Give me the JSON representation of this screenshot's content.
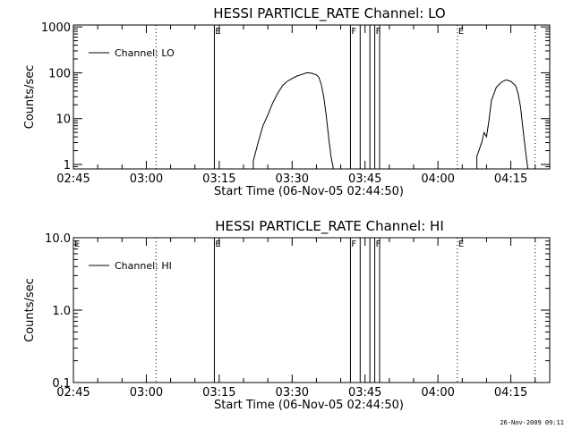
{
  "chart_data": [
    {
      "type": "line",
      "title": "HESSI PARTICLE_RATE Channel: LO",
      "xlabel": "Start Time (06-Nov-05 02:44:50)",
      "ylabel": "Counts/sec",
      "y_scale": "log",
      "ylim": [
        0.8,
        1100
      ],
      "xlim": [
        "02:45",
        "04:23"
      ],
      "x_ticks": [
        "02:45",
        "03:00",
        "03:15",
        "03:30",
        "03:45",
        "04:00",
        "04:15"
      ],
      "y_ticks": [
        {
          "value": 1,
          "label": "1"
        },
        {
          "value": 10,
          "label": "10"
        },
        {
          "value": 100,
          "label": "100"
        },
        {
          "value": 1000,
          "label": "1000"
        }
      ],
      "legend": {
        "placement": "top-left",
        "entries": [
          "Channel: LO"
        ]
      },
      "grid": false,
      "markers": [
        {
          "time": "03:02",
          "style": "dotted",
          "label": ""
        },
        {
          "time": "03:14",
          "style": "solid",
          "label": "E"
        },
        {
          "time": "03:42",
          "style": "solid",
          "label": "F"
        },
        {
          "time": "03:44",
          "style": "solid",
          "label": ""
        },
        {
          "time": "03:46",
          "style": "solid",
          "label": ""
        },
        {
          "time": "03:47",
          "style": "solid",
          "label": "F"
        },
        {
          "time": "03:48",
          "style": "solid",
          "label": ""
        },
        {
          "time": "04:04",
          "style": "dotted",
          "label": "E"
        },
        {
          "time": "04:20",
          "style": "dotted",
          "label": ""
        }
      ],
      "series": [
        {
          "name": "Channel: LO",
          "segments": [
            [
              [
                "03:22",
                0.8
              ],
              [
                "03:22",
                1.2
              ],
              [
                "03:23",
                3
              ],
              [
                "03:24",
                7
              ],
              [
                "03:25",
                12
              ],
              [
                "03:26",
                22
              ],
              [
                "03:27",
                35
              ],
              [
                "03:28",
                52
              ],
              [
                "03:29",
                65
              ],
              [
                "03:30",
                75
              ],
              [
                "03:31",
                85
              ],
              [
                "03:32",
                92
              ],
              [
                "03:33",
                100
              ],
              [
                "03:34",
                98
              ],
              [
                "03:35",
                90
              ],
              [
                "03:35.5",
                80
              ],
              [
                "03:36",
                55
              ],
              [
                "03:36.5",
                30
              ],
              [
                "03:37",
                12
              ],
              [
                "03:37.5",
                4
              ],
              [
                "03:38",
                1.5
              ],
              [
                "03:38.5",
                0.8
              ]
            ],
            [
              [
                "04:08",
                0.8
              ],
              [
                "04:08",
                1.5
              ],
              [
                "04:09",
                3
              ],
              [
                "04:09.5",
                5
              ],
              [
                "04:10",
                4
              ],
              [
                "04:10.5",
                9
              ],
              [
                "04:11",
                25
              ],
              [
                "04:12",
                48
              ],
              [
                "04:13",
                62
              ],
              [
                "04:14",
                70
              ],
              [
                "04:15",
                65
              ],
              [
                "04:16",
                52
              ],
              [
                "04:16.5",
                35
              ],
              [
                "04:17",
                18
              ],
              [
                "04:17.5",
                6
              ],
              [
                "04:18",
                2
              ],
              [
                "04:18.5",
                0.8
              ]
            ]
          ]
        }
      ]
    },
    {
      "type": "line",
      "title": "HESSI PARTICLE_RATE Channel: HI",
      "xlabel": "Start Time (06-Nov-05 02:44:50)",
      "ylabel": "Counts/sec",
      "y_scale": "log",
      "ylim": [
        0.1,
        10
      ],
      "xlim": [
        "02:45",
        "04:23"
      ],
      "x_ticks": [
        "02:45",
        "03:00",
        "03:15",
        "03:30",
        "03:45",
        "04:00",
        "04:15"
      ],
      "y_ticks": [
        {
          "value": 0.1,
          "label": "0.1"
        },
        {
          "value": 1,
          "label": "1.0"
        },
        {
          "value": 10,
          "label": "10.0"
        }
      ],
      "legend": {
        "placement": "top-left",
        "entries": [
          "Channel: HI"
        ]
      },
      "grid": false,
      "markers": [
        {
          "time": "02:45",
          "style": "none",
          "label": "E"
        },
        {
          "time": "03:02",
          "style": "dotted",
          "label": ""
        },
        {
          "time": "03:14",
          "style": "solid",
          "label": "E"
        },
        {
          "time": "03:42",
          "style": "solid",
          "label": "F"
        },
        {
          "time": "03:44",
          "style": "solid",
          "label": ""
        },
        {
          "time": "03:46",
          "style": "solid",
          "label": ""
        },
        {
          "time": "03:47",
          "style": "solid",
          "label": "F"
        },
        {
          "time": "03:48",
          "style": "solid",
          "label": ""
        },
        {
          "time": "04:04",
          "style": "dotted",
          "label": "E"
        },
        {
          "time": "04:20",
          "style": "dotted",
          "label": ""
        }
      ],
      "series": [
        {
          "name": "Channel: HI",
          "segments": []
        }
      ]
    }
  ],
  "footer": {
    "timestamp": "26-Nov-2009 09:11"
  }
}
